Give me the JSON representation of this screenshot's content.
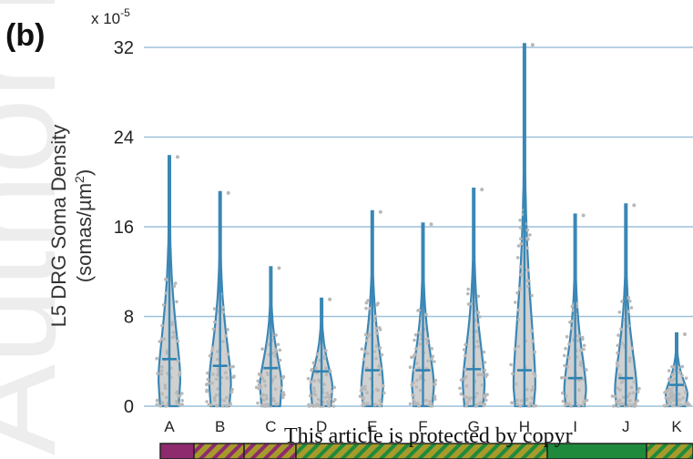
{
  "panel_label": "(b)",
  "notice_text": "This article is protected by copyr",
  "watermark_text": "Author Manuscript",
  "colors": {
    "grid": "#9ec1dc",
    "outline": "#3a87b5",
    "median": "#2e82b3",
    "violin_fill": "#d0d0d0",
    "points": "#b8b8b8",
    "bar_magenta": "#8e2a6e",
    "bar_olive": "#a59a2a",
    "bar_green": "#1f8a3c"
  },
  "chart_data": {
    "type": "violin",
    "ylabel_main": "L5 DRG Soma Density",
    "ylabel_unit_pre": "(somas/µm",
    "ylabel_unit_sup": "2",
    "ylabel_unit_post": ")",
    "y_multiplier_base": "x 10",
    "y_multiplier_exp": "-5",
    "ylim": [
      0,
      32
    ],
    "yticks": [
      0,
      8,
      16,
      24,
      32
    ],
    "ytick_labels": [
      "0",
      "8",
      "16",
      "24",
      "32"
    ],
    "grid": true,
    "categories": [
      "A",
      "B",
      "C",
      "D",
      "E",
      "F",
      "G",
      "H",
      "I",
      "J",
      "K"
    ],
    "max": [
      22.3,
      19.1,
      12.4,
      9.6,
      17.4,
      16.3,
      19.4,
      32.3,
      17.1,
      18.0,
      6.5
    ],
    "median": [
      4.2,
      3.6,
      3.4,
      3.1,
      3.2,
      3.2,
      3.3,
      3.2,
      2.5,
      2.5,
      1.9
    ],
    "min": [
      0,
      0,
      0,
      0,
      0,
      0,
      0,
      0,
      0,
      0,
      0
    ]
  }
}
